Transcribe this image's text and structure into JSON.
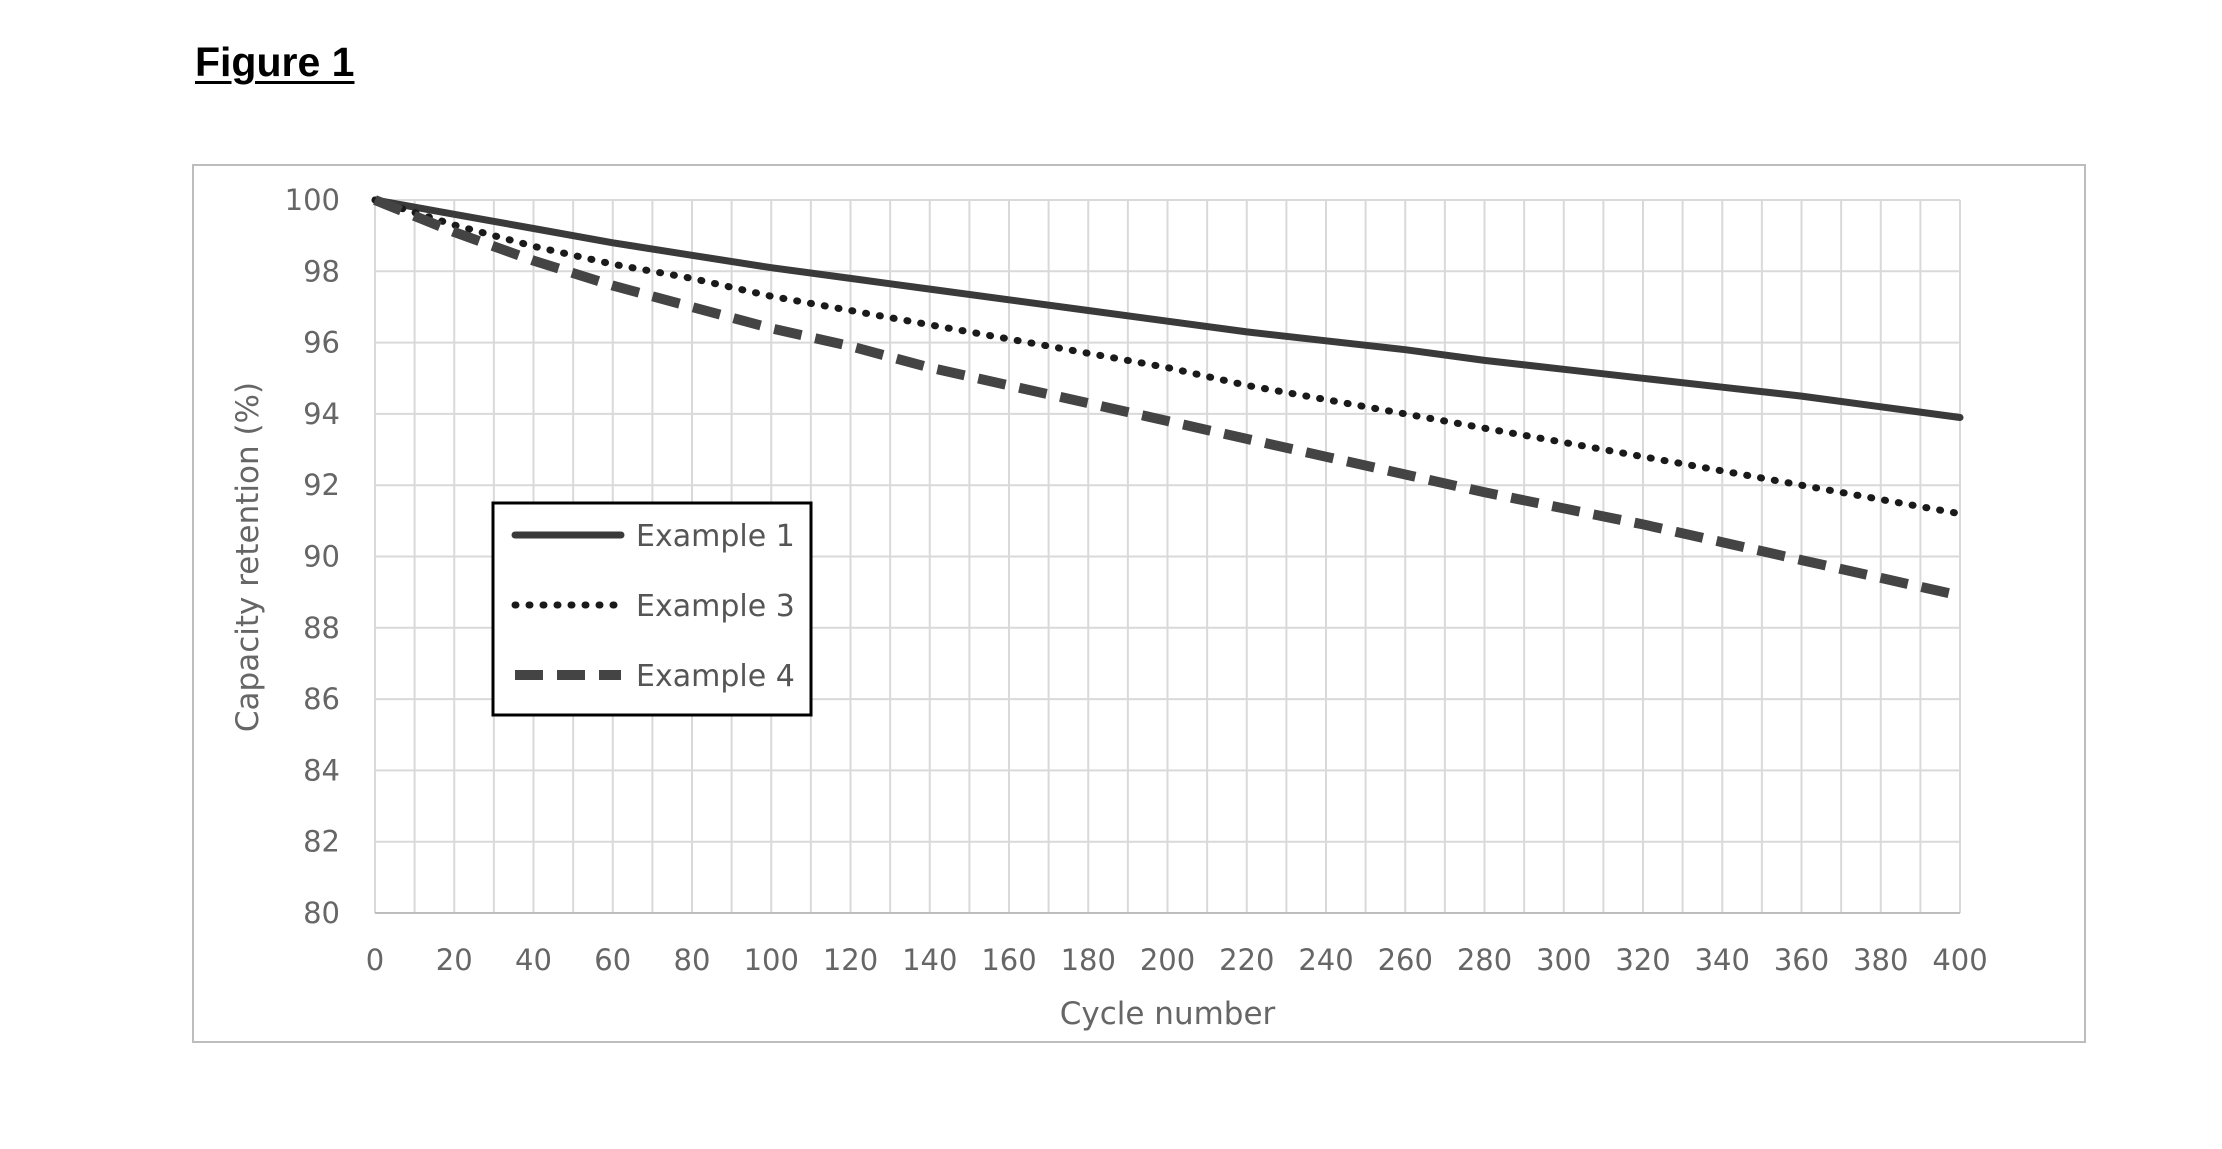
{
  "figure": {
    "title": "Figure 1"
  },
  "chart_data": {
    "type": "line",
    "title": "",
    "xlabel": "Cycle number",
    "ylabel": "Capacity retention (%)",
    "xlim": [
      0,
      400
    ],
    "ylim": [
      80,
      100
    ],
    "xticks": [
      0,
      20,
      40,
      60,
      80,
      100,
      120,
      140,
      160,
      180,
      200,
      220,
      240,
      260,
      280,
      300,
      320,
      340,
      360,
      380,
      400
    ],
    "yticks": [
      80,
      82,
      84,
      86,
      88,
      90,
      92,
      94,
      96,
      98,
      100
    ],
    "x_minor_step": 10,
    "grid": true,
    "legend_position": "middle-left",
    "x": [
      0,
      20,
      40,
      60,
      80,
      100,
      120,
      140,
      160,
      180,
      200,
      220,
      240,
      260,
      280,
      300,
      320,
      340,
      360,
      380,
      400
    ],
    "series": [
      {
        "name": "Example 1",
        "style": "solid",
        "color": "#3a3a3a",
        "values": [
          100,
          99.6,
          99.2,
          98.8,
          98.45,
          98.1,
          97.8,
          97.5,
          97.2,
          96.9,
          96.6,
          96.3,
          96.05,
          95.8,
          95.5,
          95.25,
          95.0,
          94.75,
          94.5,
          94.2,
          93.9
        ]
      },
      {
        "name": "Example 3",
        "style": "dotted",
        "color": "#1a1a1a",
        "values": [
          100,
          99.3,
          98.7,
          98.2,
          97.8,
          97.3,
          96.9,
          96.5,
          96.1,
          95.7,
          95.3,
          94.8,
          94.4,
          94.0,
          93.6,
          93.2,
          92.8,
          92.4,
          92.0,
          91.6,
          91.2
        ]
      },
      {
        "name": "Example 4",
        "style": "dashed",
        "color": "#444444",
        "values": [
          100,
          99.1,
          98.3,
          97.6,
          97.0,
          96.4,
          95.9,
          95.3,
          94.8,
          94.3,
          93.8,
          93.3,
          92.8,
          92.3,
          91.8,
          91.35,
          90.9,
          90.4,
          89.9,
          89.4,
          88.9
        ]
      }
    ]
  }
}
